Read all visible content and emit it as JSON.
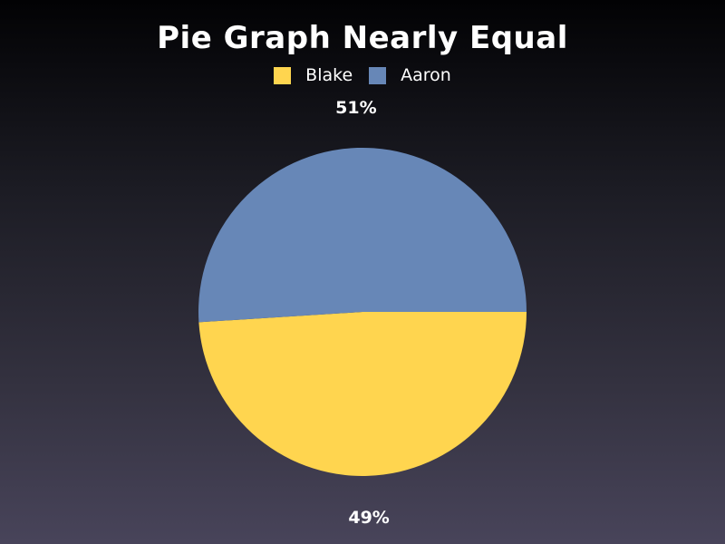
{
  "chart_data": {
    "type": "pie",
    "title": "Pie Graph Nearly Equal",
    "legend_position": "top",
    "series": [
      {
        "name": "Blake",
        "value": 49,
        "label": "49%",
        "color": "#ffd54f"
      },
      {
        "name": "Aaron",
        "value": 51,
        "label": "51%",
        "color": "#6787b7"
      }
    ]
  }
}
